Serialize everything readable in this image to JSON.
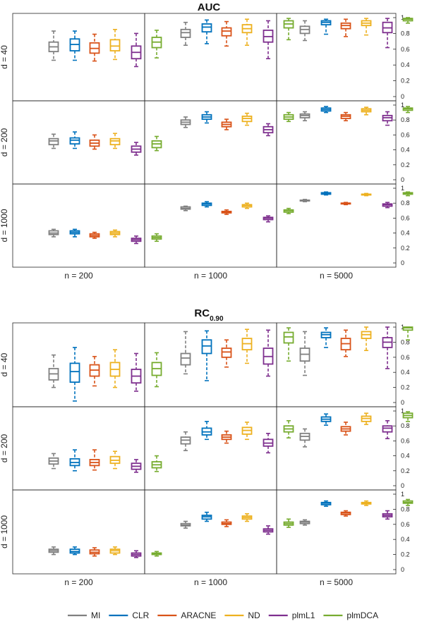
{
  "legend": [
    {
      "name": "MI",
      "color": "#808080"
    },
    {
      "name": "CLR",
      "color": "#0072bd"
    },
    {
      "name": "ARACNE",
      "color": "#d95319"
    },
    {
      "name": "ND",
      "color": "#edb120"
    },
    {
      "name": "plmL1",
      "color": "#7e2f8e"
    },
    {
      "name": "plmDCA",
      "color": "#77ac30"
    }
  ],
  "chart_data": [
    {
      "type": "box",
      "title": "AUC",
      "title_subscript": "",
      "ylim": [
        0,
        1
      ],
      "yticks": [
        "0",
        "0.2",
        "0.4",
        "0.6",
        "0.8",
        "1"
      ],
      "columns": [
        "n = 200",
        "n = 1000",
        "n = 5000"
      ],
      "rows": [
        "d = 40",
        "d = 200",
        "d = 1000"
      ],
      "series": [
        "MI",
        "CLR",
        "ARACNE",
        "ND",
        "plmL1",
        "plmDCA"
      ],
      "stats_order": [
        "whisker_low",
        "q1",
        "median",
        "q3",
        "whisker_high"
      ],
      "data": [
        [
          [
            [
              0.46,
              0.57,
              0.63,
              0.69,
              0.83
            ],
            [
              0.46,
              0.58,
              0.66,
              0.73,
              0.83
            ],
            [
              0.45,
              0.55,
              0.61,
              0.68,
              0.79
            ],
            [
              0.47,
              0.58,
              0.64,
              0.72,
              0.85
            ],
            [
              0.38,
              0.48,
              0.56,
              0.64,
              0.8
            ],
            [
              0.49,
              0.62,
              0.69,
              0.75,
              0.84
            ]
          ],
          [
            [
              0.65,
              0.75,
              0.81,
              0.85,
              0.94
            ],
            [
              0.67,
              0.82,
              0.88,
              0.92,
              0.97
            ],
            [
              0.64,
              0.77,
              0.83,
              0.87,
              0.95
            ],
            [
              0.65,
              0.81,
              0.86,
              0.91,
              0.98
            ],
            [
              0.48,
              0.69,
              0.76,
              0.84,
              0.96
            ],
            [
              0.72,
              0.87,
              0.92,
              0.96,
              0.99
            ]
          ],
          [
            [
              0.71,
              0.8,
              0.85,
              0.89,
              0.96
            ],
            [
              0.79,
              0.91,
              0.94,
              0.96,
              0.98
            ],
            [
              0.76,
              0.86,
              0.9,
              0.93,
              0.98
            ],
            [
              0.78,
              0.9,
              0.93,
              0.96,
              0.99
            ],
            [
              0.62,
              0.81,
              0.87,
              0.94,
              0.99
            ],
            [
              0.93,
              0.96,
              0.98,
              0.99,
              1.0
            ]
          ]
        ],
        [
          [
            [
              0.42,
              0.47,
              0.52,
              0.55,
              0.61
            ],
            [
              0.42,
              0.48,
              0.53,
              0.56,
              0.64
            ],
            [
              0.41,
              0.45,
              0.49,
              0.53,
              0.6
            ],
            [
              0.42,
              0.47,
              0.52,
              0.55,
              0.62
            ],
            [
              0.33,
              0.37,
              0.41,
              0.45,
              0.5
            ],
            [
              0.39,
              0.43,
              0.48,
              0.52,
              0.58
            ]
          ],
          [
            [
              0.7,
              0.74,
              0.77,
              0.8,
              0.84
            ],
            [
              0.76,
              0.81,
              0.84,
              0.87,
              0.91
            ],
            [
              0.67,
              0.71,
              0.74,
              0.77,
              0.81
            ],
            [
              0.73,
              0.78,
              0.82,
              0.85,
              0.89
            ],
            [
              0.59,
              0.63,
              0.67,
              0.71,
              0.75
            ],
            [
              0.78,
              0.81,
              0.84,
              0.87,
              0.9
            ]
          ],
          [
            [
              0.79,
              0.83,
              0.86,
              0.88,
              0.91
            ],
            [
              0.9,
              0.92,
              0.94,
              0.96,
              0.98
            ],
            [
              0.79,
              0.82,
              0.85,
              0.87,
              0.9
            ],
            [
              0.87,
              0.91,
              0.93,
              0.95,
              0.97
            ],
            [
              0.73,
              0.79,
              0.83,
              0.86,
              0.91
            ],
            [
              0.9,
              0.93,
              0.95,
              0.96,
              0.98
            ]
          ]
        ],
        [
          [
            [
              0.35,
              0.38,
              0.4,
              0.43,
              0.45
            ],
            [
              0.35,
              0.39,
              0.41,
              0.43,
              0.45
            ],
            [
              0.33,
              0.35,
              0.37,
              0.39,
              0.41
            ],
            [
              0.35,
              0.38,
              0.4,
              0.42,
              0.44
            ],
            [
              0.26,
              0.29,
              0.31,
              0.33,
              0.36
            ],
            [
              0.29,
              0.32,
              0.34,
              0.36,
              0.39
            ]
          ],
          [
            [
              0.7,
              0.72,
              0.73,
              0.75,
              0.76
            ],
            [
              0.75,
              0.77,
              0.79,
              0.8,
              0.82
            ],
            [
              0.65,
              0.67,
              0.68,
              0.69,
              0.71
            ],
            [
              0.73,
              0.75,
              0.77,
              0.78,
              0.8
            ],
            [
              0.55,
              0.58,
              0.6,
              0.61,
              0.63
            ],
            [
              0.66,
              0.68,
              0.7,
              0.71,
              0.73
            ]
          ],
          [
            [
              0.82,
              0.83,
              0.84,
              0.84,
              0.85
            ],
            [
              0.91,
              0.92,
              0.93,
              0.94,
              0.95
            ],
            [
              0.78,
              0.79,
              0.8,
              0.8,
              0.81
            ],
            [
              0.9,
              0.91,
              0.92,
              0.92,
              0.93
            ],
            [
              0.74,
              0.76,
              0.78,
              0.79,
              0.81
            ],
            [
              0.9,
              0.92,
              0.93,
              0.94,
              0.95
            ]
          ]
        ]
      ]
    },
    {
      "type": "box",
      "title": "RC",
      "title_subscript": "0.90",
      "ylim": [
        0,
        1
      ],
      "yticks": [
        "0",
        "0.2",
        "0.4",
        "0.6",
        "0.8",
        "1"
      ],
      "columns": [
        "n = 200",
        "n = 1000",
        "n = 5000"
      ],
      "rows": [
        "d = 40",
        "d = 200",
        "d = 1000"
      ],
      "series": [
        "MI",
        "CLR",
        "ARACNE",
        "ND",
        "plmL1",
        "plmDCA"
      ],
      "stats_order": [
        "whisker_low",
        "q1",
        "median",
        "q3",
        "whisker_high"
      ],
      "data": [
        [
          [
            [
              0.2,
              0.3,
              0.38,
              0.45,
              0.63
            ],
            [
              0.02,
              0.27,
              0.41,
              0.52,
              0.73
            ],
            [
              0.22,
              0.35,
              0.43,
              0.5,
              0.61
            ],
            [
              0.2,
              0.35,
              0.44,
              0.53,
              0.7
            ],
            [
              0.15,
              0.26,
              0.35,
              0.44,
              0.65
            ],
            [
              0.21,
              0.36,
              0.45,
              0.53,
              0.66
            ]
          ],
          [
            [
              0.38,
              0.5,
              0.59,
              0.65,
              0.94
            ],
            [
              0.29,
              0.65,
              0.75,
              0.83,
              0.95
            ],
            [
              0.47,
              0.6,
              0.67,
              0.72,
              0.83
            ],
            [
              0.52,
              0.7,
              0.78,
              0.85,
              0.97
            ],
            [
              0.35,
              0.51,
              0.61,
              0.72,
              0.96
            ],
            [
              0.55,
              0.79,
              0.87,
              0.93,
              0.99
            ]
          ],
          [
            [
              0.36,
              0.55,
              0.64,
              0.72,
              0.94
            ],
            [
              0.73,
              0.86,
              0.9,
              0.93,
              0.99
            ],
            [
              0.61,
              0.7,
              0.78,
              0.85,
              0.96
            ],
            [
              0.69,
              0.85,
              0.9,
              0.94,
              1.0
            ],
            [
              0.45,
              0.73,
              0.8,
              0.86,
              1.0
            ],
            [
              0.83,
              0.96,
              0.99,
              1.0,
              1.0
            ]
          ]
        ],
        [
          [
            [
              0.23,
              0.29,
              0.33,
              0.37,
              0.43
            ],
            [
              0.2,
              0.27,
              0.31,
              0.36,
              0.48
            ],
            [
              0.21,
              0.27,
              0.31,
              0.35,
              0.48
            ],
            [
              0.23,
              0.3,
              0.34,
              0.39,
              0.46
            ],
            [
              0.18,
              0.22,
              0.26,
              0.3,
              0.35
            ],
            [
              0.19,
              0.24,
              0.28,
              0.32,
              0.4
            ]
          ],
          [
            [
              0.47,
              0.56,
              0.61,
              0.65,
              0.72
            ],
            [
              0.62,
              0.68,
              0.72,
              0.77,
              0.86
            ],
            [
              0.57,
              0.62,
              0.65,
              0.68,
              0.73
            ],
            [
              0.62,
              0.69,
              0.74,
              0.78,
              0.85
            ],
            [
              0.44,
              0.53,
              0.57,
              0.62,
              0.7
            ],
            [
              0.64,
              0.72,
              0.76,
              0.8,
              0.87
            ]
          ],
          [
            [
              0.52,
              0.61,
              0.66,
              0.7,
              0.76
            ],
            [
              0.81,
              0.86,
              0.89,
              0.92,
              0.96
            ],
            [
              0.68,
              0.73,
              0.76,
              0.79,
              0.85
            ],
            [
              0.82,
              0.86,
              0.9,
              0.93,
              0.97
            ],
            [
              0.63,
              0.72,
              0.77,
              0.8,
              0.87
            ],
            [
              0.86,
              0.91,
              0.94,
              0.97,
              0.99
            ]
          ]
        ],
        [
          [
            [
              0.2,
              0.23,
              0.25,
              0.27,
              0.3
            ],
            [
              0.2,
              0.22,
              0.24,
              0.27,
              0.3
            ],
            [
              0.18,
              0.21,
              0.23,
              0.26,
              0.29
            ],
            [
              0.2,
              0.22,
              0.25,
              0.27,
              0.3
            ],
            [
              0.16,
              0.18,
              0.2,
              0.22,
              0.25
            ],
            [
              0.18,
              0.2,
              0.21,
              0.22,
              0.24
            ]
          ],
          [
            [
              0.55,
              0.58,
              0.59,
              0.61,
              0.64
            ],
            [
              0.64,
              0.67,
              0.7,
              0.72,
              0.76
            ],
            [
              0.57,
              0.6,
              0.61,
              0.63,
              0.66
            ],
            [
              0.64,
              0.67,
              0.69,
              0.71,
              0.74
            ],
            [
              0.47,
              0.5,
              0.52,
              0.54,
              0.58
            ],
            [
              0.56,
              0.59,
              0.61,
              0.63,
              0.67
            ]
          ],
          [
            [
              0.59,
              0.61,
              0.63,
              0.64,
              0.66
            ],
            [
              0.84,
              0.86,
              0.88,
              0.89,
              0.91
            ],
            [
              0.71,
              0.73,
              0.75,
              0.76,
              0.78
            ],
            [
              0.85,
              0.87,
              0.88,
              0.89,
              0.91
            ],
            [
              0.67,
              0.7,
              0.72,
              0.74,
              0.78
            ],
            [
              0.85,
              0.88,
              0.89,
              0.91,
              0.93
            ]
          ]
        ]
      ]
    }
  ]
}
